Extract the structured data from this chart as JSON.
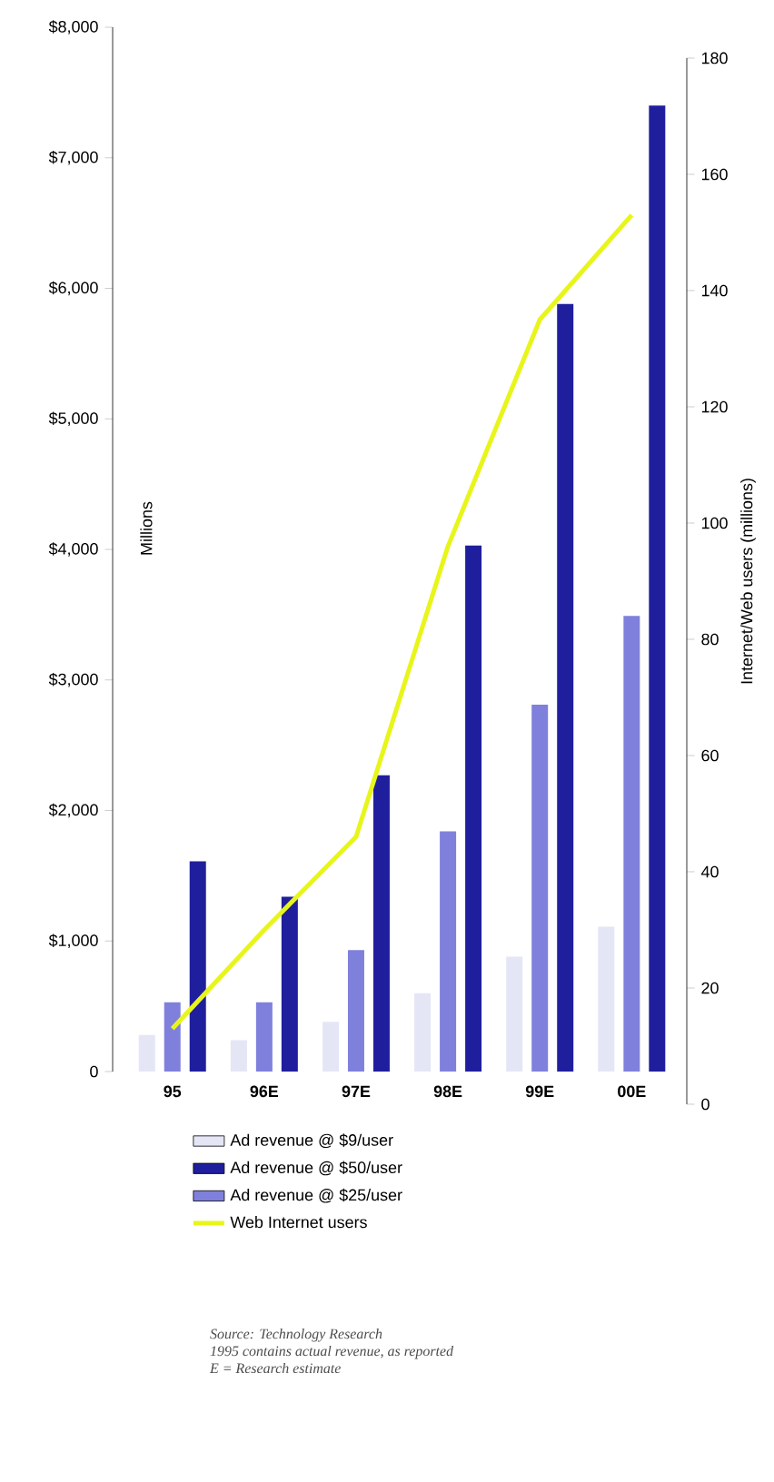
{
  "chart_data": {
    "type": "bar",
    "categories": [
      "95",
      "96E",
      "97E",
      "98E",
      "99E",
      "00E"
    ],
    "series": [
      {
        "name": "Ad revenue @ $9/user",
        "color": "#e4e6f6",
        "values": [
          280,
          240,
          380,
          600,
          880,
          1110
        ]
      },
      {
        "name": "Ad revenue @ $50/user",
        "color": "#1f1f9e",
        "values": [
          1610,
          1340,
          2270,
          4030,
          5880,
          7400
        ]
      },
      {
        "name": "Ad revenue @ $25/user",
        "color": "#7f80dc",
        "values": [
          530,
          530,
          930,
          1840,
          2810,
          3490
        ]
      },
      {
        "name": "Web Internet users",
        "type": "line",
        "axis": "y2",
        "color": "#e8f51a",
        "values": [
          13,
          30,
          46,
          96,
          135,
          153
        ]
      }
    ],
    "ylabel": "Millions",
    "y2label": "Internet/Web users (millions)",
    "ylim": [
      0,
      8000
    ],
    "yticks": [
      {
        "value": 0,
        "label": "0"
      },
      {
        "value": 1000,
        "label": "$1,000"
      },
      {
        "value": 2000,
        "label": "$2,000"
      },
      {
        "value": 3000,
        "label": "$3,000"
      },
      {
        "value": 4000,
        "label": "$4,000"
      },
      {
        "value": 5000,
        "label": "$5,000"
      },
      {
        "value": 6000,
        "label": "$6,000"
      },
      {
        "value": 7000,
        "label": "$7,000"
      },
      {
        "value": 8000,
        "label": "$8,000"
      }
    ],
    "y2lim": [
      0,
      180
    ],
    "y2ticks": [
      0,
      20,
      40,
      60,
      80,
      100,
      120,
      140,
      160,
      180
    ],
    "legend": "bottom",
    "grid": false,
    "marker": "none",
    "line_style": "solid",
    "annotations": [
      "Source: Technology Research",
      "1995 contains actual revenue, as reported",
      "E = Research estimate"
    ]
  }
}
